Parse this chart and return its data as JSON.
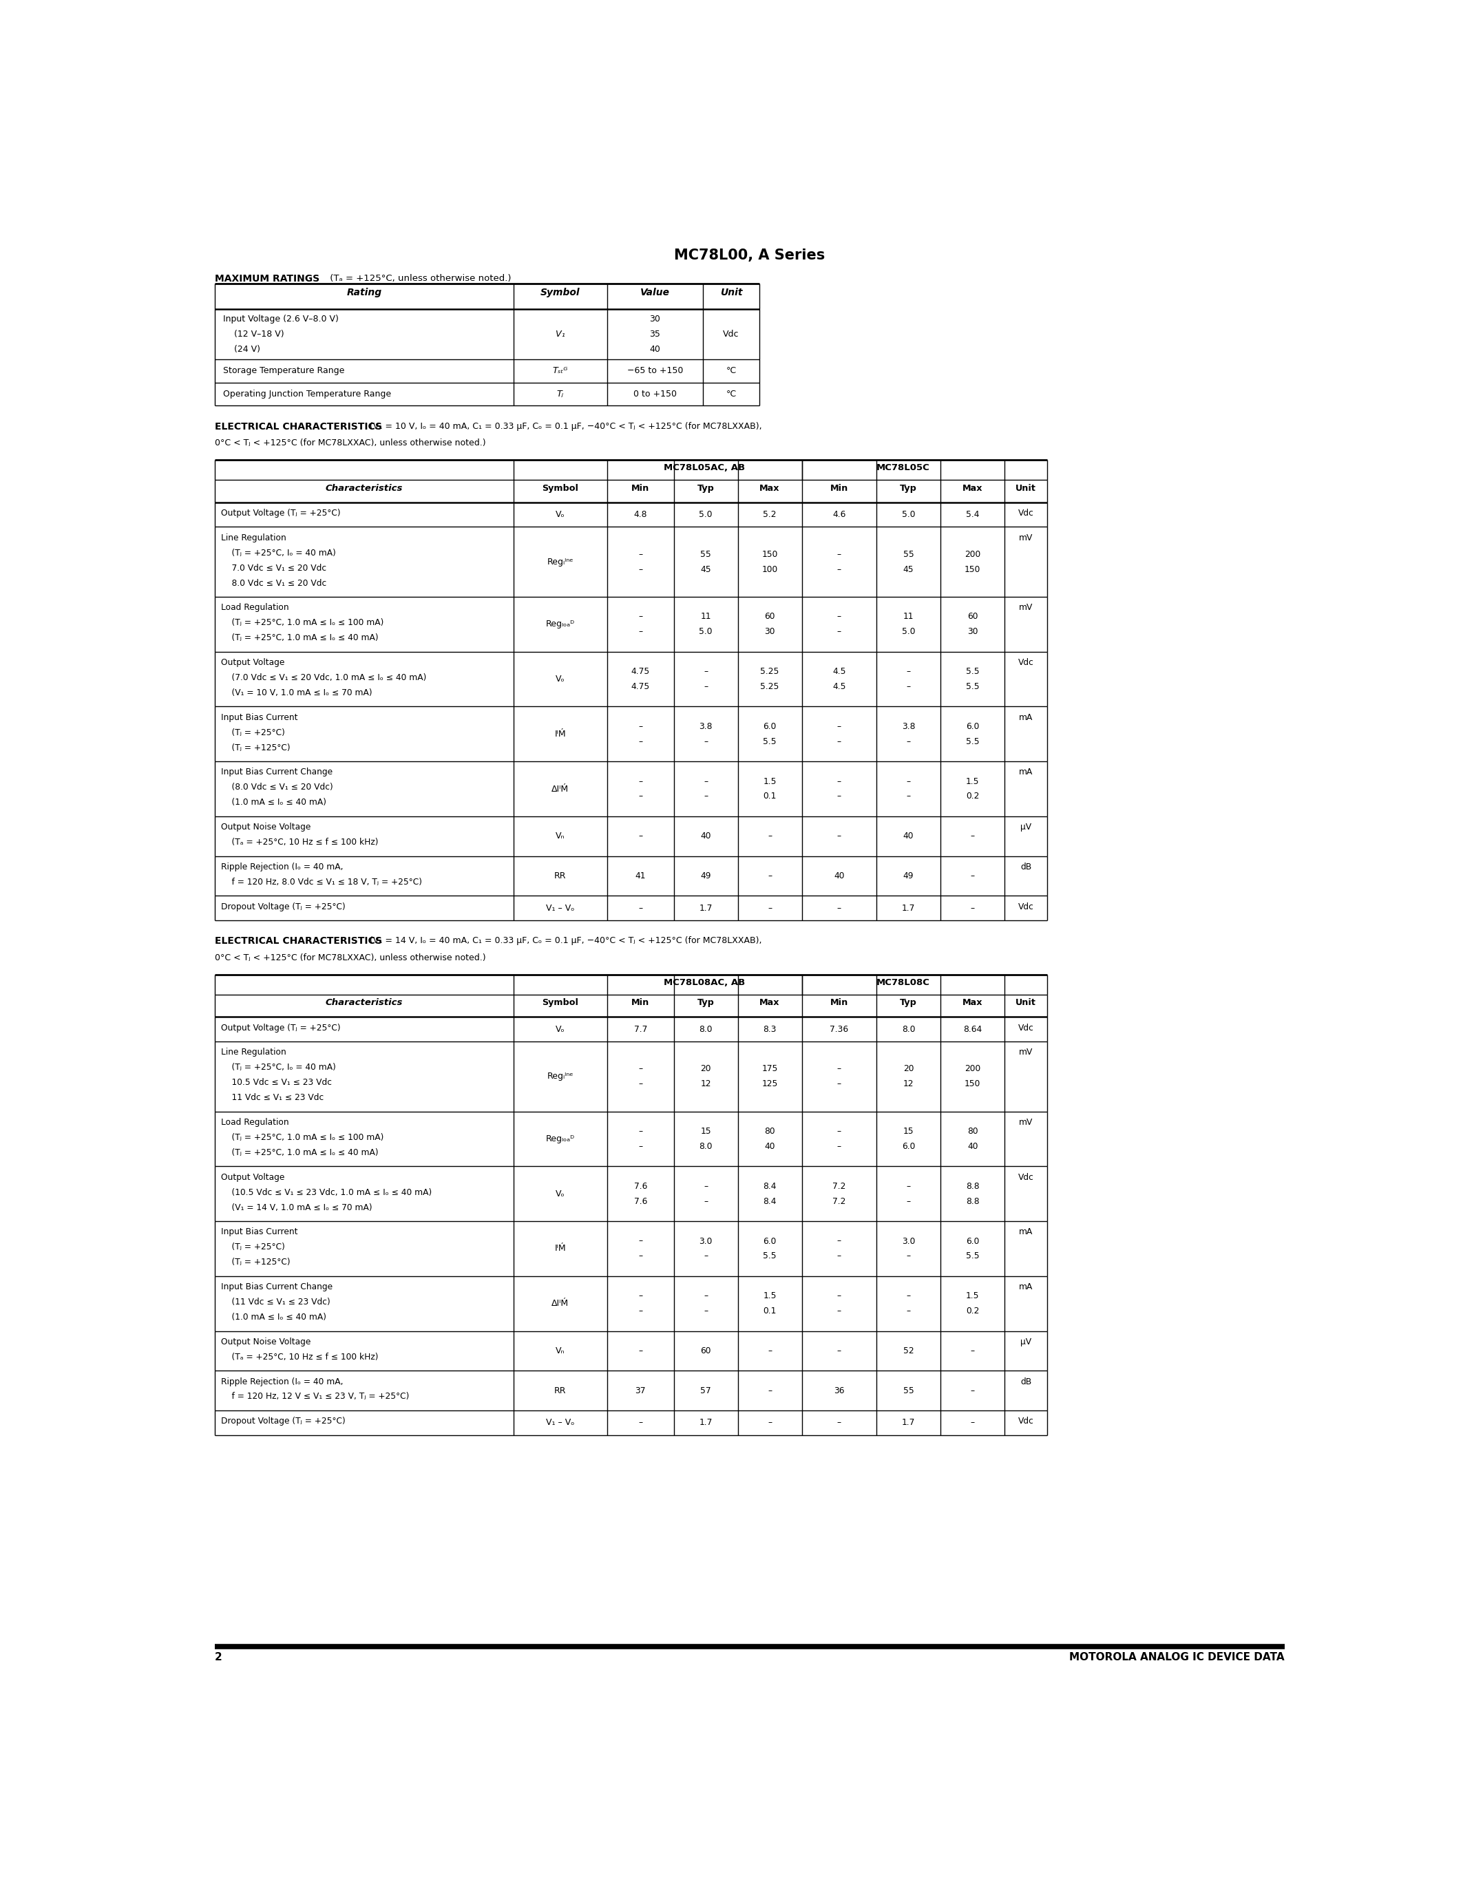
{
  "title": "MC78L00, A Series",
  "page_num": "2",
  "footer_right": "MOTOROLA ANALOG IC DEVICE DATA",
  "background_color": "#ffffff",
  "max_ratings_header": "MAXIMUM RATINGS",
  "max_ratings_subheader": " (Tₐ = +125°C, unless otherwise noted.)",
  "max_ratings_cols": [
    "Rating",
    "Symbol",
    "Value",
    "Unit"
  ],
  "max_ratings_rows": [
    [
      "Input Voltage (2.6 V–8.0 V)\n    (12 V–18 V)\n    (24 V)",
      "V₁",
      "30\n35\n40",
      "Vdc"
    ],
    [
      "Storage Temperature Range",
      "Tₛₜᴳ",
      "−65 to +150",
      "°C"
    ],
    [
      "Operating Junction Temperature Range",
      "Tⱼ",
      "0 to +150",
      "°C"
    ]
  ],
  "ec5_header": "ELECTRICAL CHARACTERISTICS",
  "ec5_cond1": " (V₁ = 10 V, Iₒ = 40 mA, C₁ = 0.33 μF, Cₒ = 0.1 μF, −40°C < Tⱼ < +125°C (for MC78LXXAB),",
  "ec5_cond2": "0°C < Tⱼ < +125°C (for MC78LXXAC), unless otherwise noted.)",
  "ec5_subheads": [
    "MC78L05AC, AB",
    "MC78L05C"
  ],
  "ec5_rows": [
    {
      "char": "Output Voltage (Tⱼ = +25°C)",
      "symbol": "Vₒ",
      "min1": "4.8",
      "typ1": "5.0",
      "max1": "5.2",
      "min2": "4.6",
      "typ2": "5.0",
      "max2": "5.4",
      "unit": "Vdc",
      "nlines": 1
    },
    {
      "char": "Line Regulation\n    (Tⱼ = +25°C, Iₒ = 40 mA)\n    7.0 Vdc ≤ V₁ ≤ 20 Vdc\n    8.0 Vdc ≤ V₁ ≤ 20 Vdc",
      "symbol": "Regₗᴵⁿᵉ",
      "min1": "–\n–",
      "typ1": "55\n45",
      "max1": "150\n100",
      "min2": "–\n–",
      "typ2": "55\n45",
      "max2": "200\n150",
      "unit": "mV",
      "nlines": 4
    },
    {
      "char": "Load Regulation\n    (Tⱼ = +25°C, 1.0 mA ≤ Iₒ ≤ 100 mA)\n    (Tⱼ = +25°C, 1.0 mA ≤ Iₒ ≤ 40 mA)",
      "symbol": "Regₗₒₐᴰ",
      "min1": "–\n–",
      "typ1": "11\n5.0",
      "max1": "60\n30",
      "min2": "–\n–",
      "typ2": "11\n5.0",
      "max2": "60\n30",
      "unit": "mV",
      "nlines": 3
    },
    {
      "char": "Output Voltage\n    (7.0 Vdc ≤ V₁ ≤ 20 Vdc, 1.0 mA ≤ Iₒ ≤ 40 mA)\n    (V₁ = 10 V, 1.0 mA ≤ Iₒ ≤ 70 mA)",
      "symbol": "Vₒ",
      "min1": "4.75\n4.75",
      "typ1": "–\n–",
      "max1": "5.25\n5.25",
      "min2": "4.5\n4.5",
      "typ2": "–\n–",
      "max2": "5.5\n5.5",
      "unit": "Vdc",
      "nlines": 3
    },
    {
      "char": "Input Bias Current\n    (Tⱼ = +25°C)\n    (Tⱼ = +125°C)",
      "symbol": "IᴵḾ",
      "min1": "–\n–",
      "typ1": "3.8\n–",
      "max1": "6.0\n5.5",
      "min2": "–\n–",
      "typ2": "3.8\n–",
      "max2": "6.0\n5.5",
      "unit": "mA",
      "nlines": 3
    },
    {
      "char": "Input Bias Current Change\n    (8.0 Vdc ≤ V₁ ≤ 20 Vdc)\n    (1.0 mA ≤ Iₒ ≤ 40 mA)",
      "symbol": "ΔIᴵḾ",
      "min1": "–\n–",
      "typ1": "–\n–",
      "max1": "1.5\n0.1",
      "min2": "–\n–",
      "typ2": "–\n–",
      "max2": "1.5\n0.2",
      "unit": "mA",
      "nlines": 3
    },
    {
      "char": "Output Noise Voltage\n    (Tₐ = +25°C, 10 Hz ≤ f ≤ 100 kHz)",
      "symbol": "Vₙ",
      "min1": "–",
      "typ1": "40",
      "max1": "–",
      "min2": "–",
      "typ2": "40",
      "max2": "–",
      "unit": "μV",
      "nlines": 2
    },
    {
      "char": "Ripple Rejection (Iₒ = 40 mA,\n    f = 120 Hz, 8.0 Vdc ≤ V₁ ≤ 18 V, Tⱼ = +25°C)",
      "symbol": "RR",
      "min1": "41",
      "typ1": "49",
      "max1": "–",
      "min2": "40",
      "typ2": "49",
      "max2": "–",
      "unit": "dB",
      "nlines": 2
    },
    {
      "char": "Dropout Voltage (Tⱼ = +25°C)",
      "symbol": "V₁ – Vₒ",
      "min1": "–",
      "typ1": "1.7",
      "max1": "–",
      "min2": "–",
      "typ2": "1.7",
      "max2": "–",
      "unit": "Vdc",
      "nlines": 1
    }
  ],
  "ec8_header": "ELECTRICAL CHARACTERISTICS",
  "ec8_cond1": " (V₁ = 14 V, Iₒ = 40 mA, C₁ = 0.33 μF, Cₒ = 0.1 μF, −40°C < Tⱼ < +125°C (for MC78LXXAB),",
  "ec8_cond2": "0°C < Tⱼ < +125°C (for MC78LXXAC), unless otherwise noted.)",
  "ec8_subheads": [
    "MC78L08AC, AB",
    "MC78L08C"
  ],
  "ec8_rows": [
    {
      "char": "Output Voltage (Tⱼ = +25°C)",
      "symbol": "Vₒ",
      "min1": "7.7",
      "typ1": "8.0",
      "max1": "8.3",
      "min2": "7.36",
      "typ2": "8.0",
      "max2": "8.64",
      "unit": "Vdc",
      "nlines": 1
    },
    {
      "char": "Line Regulation\n    (Tⱼ = +25°C, Iₒ = 40 mA)\n    10.5 Vdc ≤ V₁ ≤ 23 Vdc\n    11 Vdc ≤ V₁ ≤ 23 Vdc",
      "symbol": "Regₗᴵⁿᵉ",
      "min1": "–\n–",
      "typ1": "20\n12",
      "max1": "175\n125",
      "min2": "–\n–",
      "typ2": "20\n12",
      "max2": "200\n150",
      "unit": "mV",
      "nlines": 4
    },
    {
      "char": "Load Regulation\n    (Tⱼ = +25°C, 1.0 mA ≤ Iₒ ≤ 100 mA)\n    (Tⱼ = +25°C, 1.0 mA ≤ Iₒ ≤ 40 mA)",
      "symbol": "Regₗₒₐᴰ",
      "min1": "–\n–",
      "typ1": "15\n8.0",
      "max1": "80\n40",
      "min2": "–\n–",
      "typ2": "15\n6.0",
      "max2": "80\n40",
      "unit": "mV",
      "nlines": 3
    },
    {
      "char": "Output Voltage\n    (10.5 Vdc ≤ V₁ ≤ 23 Vdc, 1.0 mA ≤ Iₒ ≤ 40 mA)\n    (V₁ = 14 V, 1.0 mA ≤ Iₒ ≤ 70 mA)",
      "symbol": "Vₒ",
      "min1": "7.6\n7.6",
      "typ1": "–\n–",
      "max1": "8.4\n8.4",
      "min2": "7.2\n7.2",
      "typ2": "–\n–",
      "max2": "8.8\n8.8",
      "unit": "Vdc",
      "nlines": 3
    },
    {
      "char": "Input Bias Current\n    (Tⱼ = +25°C)\n    (Tⱼ = +125°C)",
      "symbol": "IᴵḾ",
      "min1": "–\n–",
      "typ1": "3.0\n–",
      "max1": "6.0\n5.5",
      "min2": "–\n–",
      "typ2": "3.0\n–",
      "max2": "6.0\n5.5",
      "unit": "mA",
      "nlines": 3
    },
    {
      "char": "Input Bias Current Change\n    (11 Vdc ≤ V₁ ≤ 23 Vdc)\n    (1.0 mA ≤ Iₒ ≤ 40 mA)",
      "symbol": "ΔIᴵḾ",
      "min1": "–\n–",
      "typ1": "–\n–",
      "max1": "1.5\n0.1",
      "min2": "–\n–",
      "typ2": "–\n–",
      "max2": "1.5\n0.2",
      "unit": "mA",
      "nlines": 3
    },
    {
      "char": "Output Noise Voltage\n    (Tₐ = +25°C, 10 Hz ≤ f ≤ 100 kHz)",
      "symbol": "Vₙ",
      "min1": "–",
      "typ1": "60",
      "max1": "–",
      "min2": "–",
      "typ2": "52",
      "max2": "–",
      "unit": "μV",
      "nlines": 2
    },
    {
      "char": "Ripple Rejection (Iₒ = 40 mA,\n    f = 120 Hz, 12 V ≤ V₁ ≤ 23 V, Tⱼ = +25°C)",
      "symbol": "RR",
      "min1": "37",
      "typ1": "57",
      "max1": "–",
      "min2": "36",
      "typ2": "55",
      "max2": "–",
      "unit": "dB",
      "nlines": 2
    },
    {
      "char": "Dropout Voltage (Tⱼ = +25°C)",
      "symbol": "V₁ – Vₒ",
      "min1": "–",
      "typ1": "1.7",
      "max1": "–",
      "min2": "–",
      "typ2": "1.7",
      "max2": "–",
      "unit": "Vdc",
      "nlines": 1
    }
  ]
}
